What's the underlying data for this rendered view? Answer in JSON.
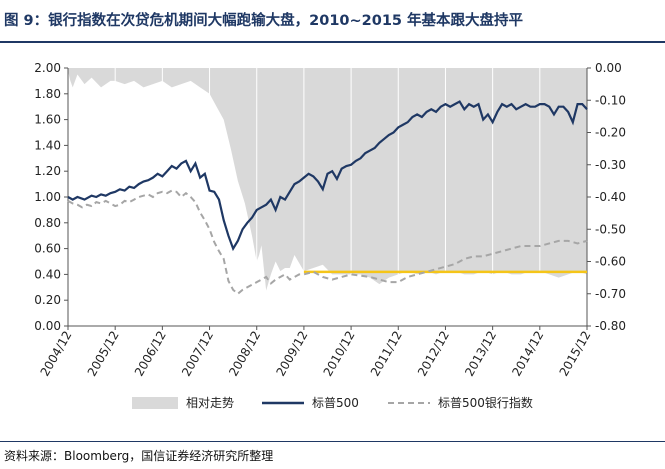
{
  "title": "图 9：银行指数在次贷危机期间大幅跑输大盘，2010~2015 年基本跟大盘持平",
  "source": "资料来源：Bloomberg，国信证券经济研究所整理",
  "chart_data": {
    "type": "line",
    "x_categories": [
      "2004/12",
      "2005/12",
      "2006/12",
      "2007/12",
      "2008/12",
      "2009/12",
      "2010/12",
      "2011/12",
      "2012/12",
      "2013/12",
      "2014/12",
      "2015/12"
    ],
    "y_left": {
      "min": 0,
      "max": 2,
      "step": 0.2,
      "ticks": [
        "2.00",
        "1.80",
        "1.60",
        "1.40",
        "1.20",
        "1.00",
        "0.80",
        "0.60",
        "0.40",
        "0.20",
        "0.00"
      ]
    },
    "y_right": {
      "min": -0.8,
      "max": 0,
      "step": 0.1,
      "ticks": [
        "0.00",
        "-0.10",
        "-0.20",
        "-0.30",
        "-0.40",
        "-0.50",
        "-0.60",
        "-0.70",
        "-0.80"
      ]
    },
    "legend": [
      "相对走势",
      "标普500",
      "标普500银行指数"
    ],
    "colors": {
      "relative": "#d9d9d9",
      "sp500": "#1f3864",
      "bank": "#a6a6a6",
      "ref_line": "#f5c518"
    },
    "reference_line": {
      "value": 0.42,
      "x_start": 5.0,
      "x_end": 11.0
    },
    "series": [
      {
        "name": "相对走势",
        "axis": "right",
        "type": "area",
        "x": [
          0,
          0.05,
          0.1,
          0.2,
          0.35,
          0.5,
          0.7,
          0.9,
          1.0,
          1.2,
          1.4,
          1.6,
          1.8,
          2.0,
          2.2,
          2.4,
          2.6,
          2.8,
          3.0,
          3.15,
          3.3,
          3.45,
          3.6,
          3.75,
          3.9,
          4.0,
          4.05,
          4.1,
          4.15,
          4.2,
          4.3,
          4.4,
          4.5,
          4.6,
          4.7,
          4.8,
          5.0,
          5.2,
          5.4,
          5.6,
          5.8,
          6.0,
          6.2,
          6.4,
          6.6,
          6.8,
          7.0,
          7.2,
          7.4,
          7.6,
          7.8,
          8.0,
          8.2,
          8.4,
          8.6,
          8.8,
          9.0,
          9.2,
          9.4,
          9.6,
          9.8,
          10.0,
          10.2,
          10.4,
          10.6,
          10.8,
          11.0
        ],
        "y": [
          -0.01,
          -0.04,
          -0.06,
          -0.02,
          -0.05,
          -0.03,
          -0.06,
          -0.04,
          -0.04,
          -0.05,
          -0.04,
          -0.06,
          -0.05,
          -0.04,
          -0.06,
          -0.05,
          -0.04,
          -0.06,
          -0.08,
          -0.12,
          -0.16,
          -0.25,
          -0.35,
          -0.42,
          -0.52,
          -0.6,
          -0.58,
          -0.55,
          -0.62,
          -0.69,
          -0.64,
          -0.6,
          -0.63,
          -0.62,
          -0.62,
          -0.58,
          -0.63,
          -0.62,
          -0.61,
          -0.64,
          -0.64,
          -0.64,
          -0.64,
          -0.65,
          -0.67,
          -0.65,
          -0.64,
          -0.63,
          -0.64,
          -0.63,
          -0.64,
          -0.63,
          -0.63,
          -0.64,
          -0.64,
          -0.63,
          -0.64,
          -0.63,
          -0.64,
          -0.64,
          -0.63,
          -0.63,
          -0.64,
          -0.65,
          -0.64,
          -0.63,
          -0.64
        ]
      },
      {
        "name": "标普500",
        "axis": "left",
        "type": "line",
        "x": [
          0,
          0.1,
          0.2,
          0.35,
          0.5,
          0.6,
          0.7,
          0.8,
          0.9,
          1.0,
          1.1,
          1.2,
          1.3,
          1.4,
          1.5,
          1.6,
          1.7,
          1.8,
          1.9,
          2.0,
          2.1,
          2.2,
          2.3,
          2.4,
          2.5,
          2.6,
          2.7,
          2.8,
          2.9,
          3.0,
          3.1,
          3.2,
          3.3,
          3.4,
          3.5,
          3.6,
          3.7,
          3.8,
          3.9,
          4.0,
          4.1,
          4.2,
          4.3,
          4.4,
          4.5,
          4.6,
          4.7,
          4.8,
          4.9,
          5.0,
          5.1,
          5.2,
          5.3,
          5.4,
          5.5,
          5.6,
          5.7,
          5.8,
          5.9,
          6.0,
          6.1,
          6.2,
          6.3,
          6.4,
          6.5,
          6.6,
          6.7,
          6.8,
          6.9,
          7.0,
          7.1,
          7.2,
          7.3,
          7.4,
          7.5,
          7.6,
          7.7,
          7.8,
          7.9,
          8.0,
          8.1,
          8.2,
          8.3,
          8.4,
          8.5,
          8.6,
          8.7,
          8.8,
          8.9,
          9.0,
          9.1,
          9.2,
          9.3,
          9.4,
          9.5,
          9.6,
          9.7,
          9.8,
          9.9,
          10.0,
          10.1,
          10.2,
          10.3,
          10.4,
          10.5,
          10.6,
          10.7,
          10.8,
          10.9,
          11.0
        ],
        "y": [
          1.0,
          0.98,
          1.0,
          0.98,
          1.01,
          1.0,
          1.02,
          1.01,
          1.03,
          1.04,
          1.06,
          1.05,
          1.08,
          1.07,
          1.1,
          1.12,
          1.13,
          1.15,
          1.18,
          1.16,
          1.2,
          1.24,
          1.22,
          1.26,
          1.28,
          1.2,
          1.26,
          1.15,
          1.18,
          1.05,
          1.04,
          0.98,
          0.82,
          0.7,
          0.6,
          0.66,
          0.75,
          0.8,
          0.84,
          0.9,
          0.92,
          0.94,
          0.98,
          0.9,
          1.0,
          0.98,
          1.04,
          1.1,
          1.12,
          1.15,
          1.18,
          1.16,
          1.12,
          1.06,
          1.18,
          1.2,
          1.14,
          1.22,
          1.24,
          1.25,
          1.28,
          1.3,
          1.34,
          1.36,
          1.38,
          1.42,
          1.45,
          1.48,
          1.5,
          1.54,
          1.56,
          1.58,
          1.62,
          1.64,
          1.62,
          1.66,
          1.68,
          1.66,
          1.7,
          1.72,
          1.7,
          1.72,
          1.74,
          1.68,
          1.72,
          1.7,
          1.72,
          1.6,
          1.64,
          1.58,
          1.66,
          1.72,
          1.7,
          1.72,
          1.68,
          1.7,
          1.72,
          1.7,
          1.7,
          1.72,
          1.72,
          1.7,
          1.64,
          1.7,
          1.7,
          1.66,
          1.58,
          1.72,
          1.72,
          1.68
        ],
        "y_note": "read from chart"
      },
      {
        "name": "标普500银行指数",
        "axis": "left",
        "type": "line",
        "dash": true,
        "x": [
          0,
          0.1,
          0.2,
          0.3,
          0.4,
          0.5,
          0.6,
          0.7,
          0.8,
          0.9,
          1.0,
          1.1,
          1.2,
          1.3,
          1.4,
          1.5,
          1.6,
          1.7,
          1.8,
          1.9,
          2.0,
          2.1,
          2.2,
          2.3,
          2.4,
          2.5,
          2.6,
          2.7,
          2.8,
          2.9,
          3.0,
          3.1,
          3.2,
          3.3,
          3.4,
          3.5,
          3.6,
          3.7,
          3.8,
          3.9,
          4.0,
          4.1,
          4.2,
          4.3,
          4.4,
          4.5,
          4.6,
          4.7,
          4.8,
          4.9,
          5.0,
          5.2,
          5.4,
          5.6,
          5.8,
          6.0,
          6.2,
          6.4,
          6.6,
          6.8,
          7.0,
          7.2,
          7.4,
          7.6,
          7.8,
          8.0,
          8.2,
          8.4,
          8.6,
          8.8,
          9.0,
          9.2,
          9.4,
          9.6,
          9.8,
          10.0,
          10.2,
          10.4,
          10.6,
          10.8,
          11.0
        ],
        "y": [
          0.97,
          0.95,
          0.94,
          0.92,
          0.94,
          0.93,
          0.96,
          0.95,
          0.97,
          0.95,
          0.93,
          0.94,
          0.97,
          0.96,
          0.98,
          1.0,
          1.01,
          1.02,
          1.0,
          1.03,
          1.04,
          1.03,
          1.05,
          1.04,
          1.0,
          1.03,
          1.0,
          0.96,
          0.88,
          0.82,
          0.75,
          0.65,
          0.58,
          0.52,
          0.35,
          0.28,
          0.25,
          0.28,
          0.3,
          0.32,
          0.34,
          0.36,
          0.38,
          0.33,
          0.36,
          0.38,
          0.4,
          0.36,
          0.38,
          0.4,
          0.4,
          0.42,
          0.38,
          0.36,
          0.38,
          0.4,
          0.39,
          0.38,
          0.36,
          0.34,
          0.34,
          0.38,
          0.4,
          0.42,
          0.44,
          0.46,
          0.48,
          0.52,
          0.54,
          0.54,
          0.56,
          0.58,
          0.6,
          0.62,
          0.62,
          0.62,
          0.64,
          0.66,
          0.66,
          0.64,
          0.66
        ]
      }
    ]
  }
}
